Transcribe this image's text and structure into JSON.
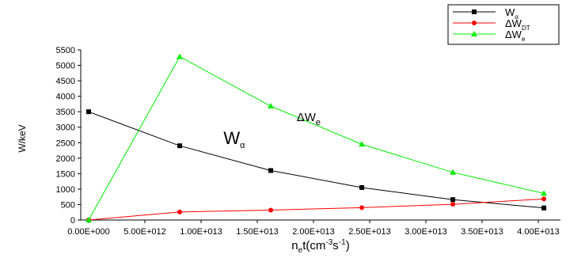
{
  "chart_data": {
    "type": "line",
    "xlabel": "",
    "xlabel_parts": {
      "n": "n",
      "sub_e": "e",
      "t": "t(cm",
      "sup1": "-3",
      "s": "s",
      "sup2": "-1",
      "close": ")"
    },
    "ylabel": "W/keV",
    "xlim": [
      0,
      40000000000000.0
    ],
    "ylim": [
      0,
      5500
    ],
    "x_ticks": [
      0,
      5000000000000.0,
      10000000000000.0,
      15000000000000.0,
      20000000000000.0,
      25000000000000.0,
      30000000000000.0,
      35000000000000.0,
      40000000000000.0
    ],
    "x_tick_labels": [
      "0.00E+000",
      "5.00E+012",
      "1.00E+013",
      "1.50E+013",
      "2.00E+013",
      "2.50E+013",
      "3.00E+013",
      "3.50E+013",
      "4.00E+013"
    ],
    "y_ticks": [
      0,
      500,
      1000,
      1500,
      2000,
      2500,
      3000,
      3500,
      4000,
      4500,
      5000,
      5500
    ],
    "y_tick_labels": [
      "0",
      "500",
      "1000",
      "1500",
      "2000",
      "2500",
      "3000",
      "3500",
      "4000",
      "4500",
      "5000",
      "5500"
    ],
    "series": [
      {
        "name": "Wα",
        "legend_main": "W",
        "legend_sub": "α",
        "color": "#000000",
        "marker": "square",
        "x": [
          0,
          8100000000000.0,
          16200000000000.0,
          24300000000000.0,
          32400000000000.0,
          40500000000000.0
        ],
        "values": [
          3500,
          2400,
          1600,
          1050,
          660,
          390
        ]
      },
      {
        "name": "ΔWDT",
        "legend_main": "ΔW",
        "legend_sub": "DT",
        "color": "#ff0000",
        "marker": "circle",
        "x": [
          0,
          8100000000000.0,
          16200000000000.0,
          24300000000000.0,
          32400000000000.0,
          40500000000000.0
        ],
        "values": [
          0,
          260,
          320,
          400,
          510,
          680
        ]
      },
      {
        "name": "ΔWe",
        "legend_main": "ΔW",
        "legend_sub": "e",
        "color": "#00ee00",
        "marker": "triangle",
        "x": [
          0,
          8100000000000.0,
          16200000000000.0,
          24300000000000.0,
          32400000000000.0,
          40500000000000.0
        ],
        "values": [
          0,
          5280,
          3680,
          2450,
          1540,
          860
        ]
      }
    ],
    "annotations": [
      {
        "id": "wa",
        "main": "W",
        "sub": "α",
        "x": 12000000000000.0,
        "y": 2450
      },
      {
        "id": "dwe",
        "main": "ΔW",
        "sub": "e",
        "x": 18500000000000.0,
        "y": 3200
      },
      {
        "id": "dwdt",
        "main": "ΔW",
        "sub": "DT",
        "x": 45000000000000.0,
        "y": 480
      }
    ],
    "legend_position": "top-right",
    "grid": false
  }
}
